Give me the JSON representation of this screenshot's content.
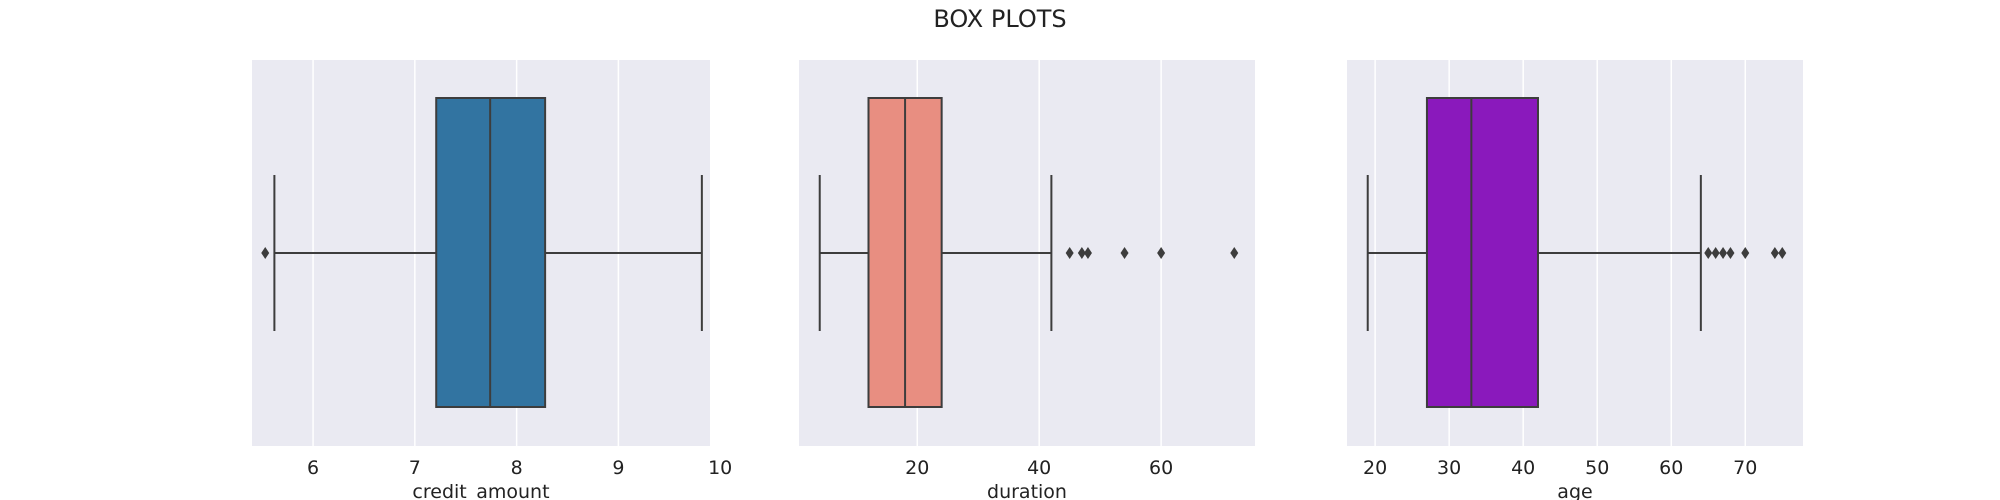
{
  "title": "BOX PLOTS",
  "chart_data": [
    {
      "type": "box",
      "xlabel": "credit_amount",
      "xlim": [
        5.4,
        9.9
      ],
      "xticks": [
        6,
        7,
        8,
        9,
        10
      ],
      "grid": true,
      "box": {
        "whisker_low": 5.62,
        "q1": 7.21,
        "median": 7.74,
        "q3": 8.28,
        "whisker_high": 9.82
      },
      "outliers": [
        5.53
      ],
      "fill_color": "#3274a1"
    },
    {
      "type": "box",
      "xlabel": "duration",
      "xlim": [
        0.6,
        75.4
      ],
      "xticks": [
        20,
        40,
        60
      ],
      "grid": true,
      "box": {
        "whisker_low": 4,
        "q1": 12,
        "median": 18,
        "q3": 24,
        "whisker_high": 42
      },
      "outliers": [
        45,
        47,
        48,
        54,
        60,
        72
      ],
      "fill_color": "#e88e81"
    },
    {
      "type": "box",
      "xlabel": "age",
      "xlim": [
        16.2,
        77.8
      ],
      "xticks": [
        20,
        30,
        40,
        50,
        60,
        70
      ],
      "grid": true,
      "box": {
        "whisker_low": 19,
        "q1": 27,
        "median": 33,
        "q3": 42,
        "whisker_high": 64
      },
      "outliers": [
        65,
        66,
        67,
        68,
        70,
        74,
        75
      ],
      "fill_color": "#8a19bc"
    }
  ]
}
